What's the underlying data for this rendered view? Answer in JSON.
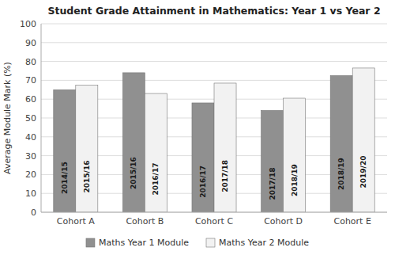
{
  "chart_data": {
    "type": "bar",
    "title": "Student Grade Attainment in Mathematics: Year 1 vs Year 2",
    "ylabel": "Average Module Mark (%)",
    "categories": [
      "Cohort A",
      "Cohort B",
      "Cohort C",
      "Cohort D",
      "Cohort E"
    ],
    "series": [
      {
        "name": "Maths Year 1 Module",
        "color": "#909090",
        "values": [
          65,
          74,
          58,
          54,
          72.5
        ],
        "labels": [
          "2014/15",
          "2015/16",
          "2016/17",
          "2017/18",
          "2018/19"
        ]
      },
      {
        "name": "Maths Year 2 Module",
        "color": "#f2f2f2",
        "values": [
          67.5,
          63,
          68.5,
          60.5,
          76.5
        ],
        "labels": [
          "2015/16",
          "2016/17",
          "2017/18",
          "2018/19",
          "2019/20"
        ]
      }
    ],
    "ylim": [
      0,
      100
    ],
    "yticks": [
      0,
      10,
      20,
      30,
      40,
      50,
      60,
      70,
      80,
      90,
      100
    ],
    "grid": true,
    "legend": "bottom"
  }
}
